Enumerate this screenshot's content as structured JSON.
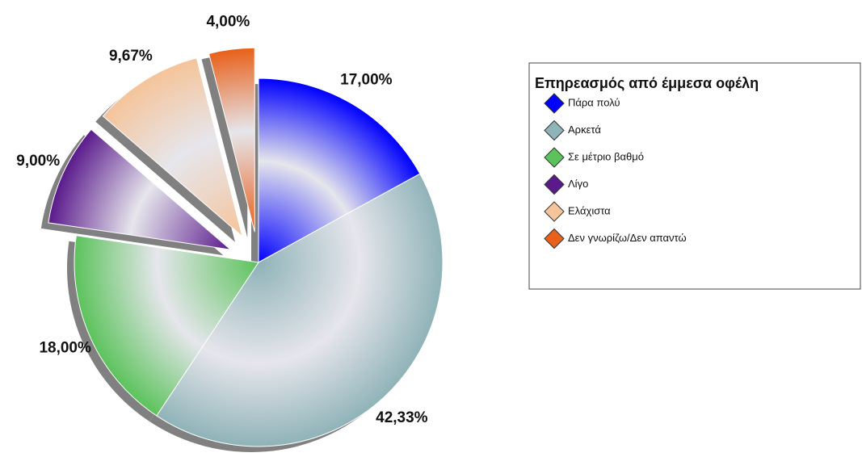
{
  "chart_data": {
    "type": "pie",
    "legend_title": "Επηρεασμός από έμμεσα οφέλη",
    "categories": [
      "Πάρα πολύ",
      "Αρκετά",
      "Σε μέτριο βαθμό",
      "Λίγο",
      "Ελάχιστα",
      "Δεν γνωρίζω/Δεν απαντώ"
    ],
    "values": [
      17,
      42.33,
      18,
      9,
      9.67,
      4
    ],
    "value_labels": [
      "17,00%",
      "42,33%",
      "18,00%",
      "9,00%",
      "9,67%",
      "4,00%"
    ],
    "colors": [
      "#0000ff",
      "#8fb3b8",
      "#5cc35c",
      "#5a1a8c",
      "#f5c49a",
      "#e8601a"
    ],
    "exploded": [
      false,
      false,
      false,
      true,
      true,
      true
    ],
    "legend": "right"
  }
}
